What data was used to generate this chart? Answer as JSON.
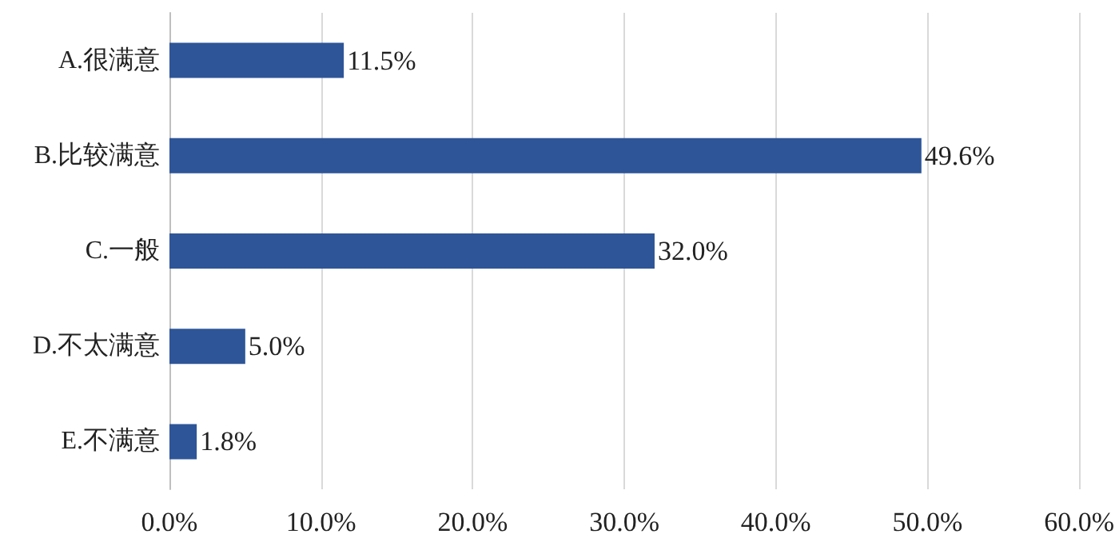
{
  "chart_data": {
    "type": "bar",
    "orientation": "horizontal",
    "categories": [
      "A.很满意",
      "B.比较满意",
      "C.一般",
      "D.不太满意",
      "E.不满意"
    ],
    "values": [
      11.5,
      49.6,
      32.0,
      5.0,
      1.8
    ],
    "value_labels": [
      "11.5%",
      "49.6%",
      "32.0%",
      "5.0%",
      "1.8%"
    ],
    "color": "#2e5597",
    "xlim": [
      0,
      60
    ],
    "xticks": [
      {
        "value": 0,
        "label": "0.0%"
      },
      {
        "value": 10,
        "label": "10.0%"
      },
      {
        "value": 20,
        "label": "20.0%"
      },
      {
        "value": 30,
        "label": "30.0%"
      },
      {
        "value": 40,
        "label": "40.0%"
      },
      {
        "value": 50,
        "label": "50.0%"
      },
      {
        "value": 60,
        "label": "60.0%"
      }
    ],
    "grid": "x"
  }
}
